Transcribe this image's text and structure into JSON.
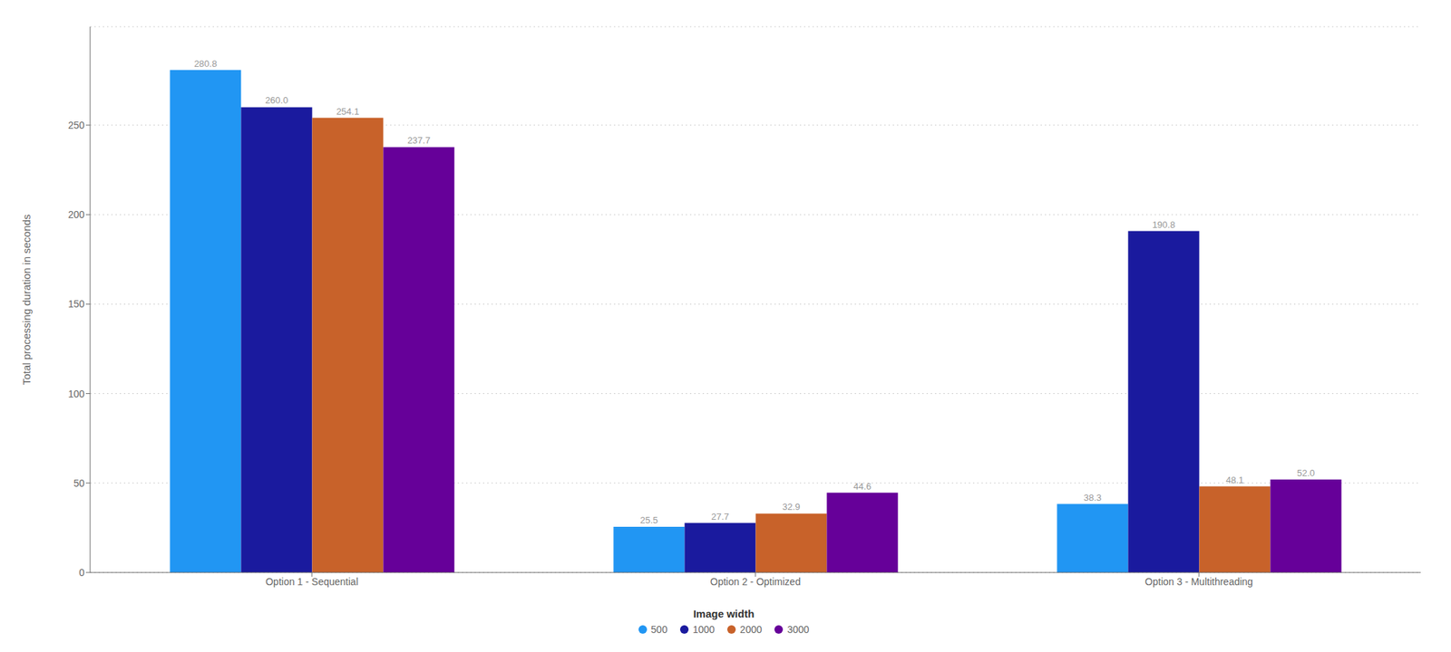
{
  "chart_data": {
    "type": "bar",
    "categories": [
      "Option 1 - Sequential",
      "Option 2 - Optimized",
      "Option 3 - Multithreading"
    ],
    "series": [
      {
        "name": "500",
        "color": "#2196F3",
        "values": [
          280.8,
          25.5,
          38.3
        ],
        "value_labels": [
          "280.8",
          "25.5",
          "38.3"
        ]
      },
      {
        "name": "1000",
        "color": "#1A1A9E",
        "values": [
          260.0,
          27.7,
          190.8
        ],
        "value_labels": [
          "260.0",
          "27.7",
          "190.8"
        ]
      },
      {
        "name": "2000",
        "color": "#C8622A",
        "values": [
          254.1,
          32.9,
          48.1
        ],
        "value_labels": [
          "254.1",
          "32.9",
          "48.1"
        ]
      },
      {
        "name": "3000",
        "color": "#660099",
        "values": [
          237.7,
          44.6,
          52.0
        ],
        "value_labels": [
          "237.7",
          "44.6",
          "52.0"
        ]
      }
    ],
    "legend_title": "Image width",
    "ylabel": "Total processing duration in seconds",
    "ylim": [
      0,
      305
    ],
    "yticks": [
      0,
      50,
      100,
      150,
      200,
      250
    ],
    "grid": true,
    "legend": "bottom",
    "data_labels": true
  }
}
